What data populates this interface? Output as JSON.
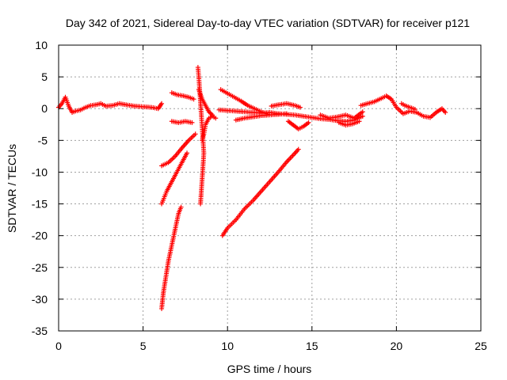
{
  "chart_data": {
    "type": "scatter",
    "title": "Day 342 of 2021, Sidereal Day-to-day VTEC variation (SDTVAR) for receiver p121",
    "xlabel": "GPS time / hours",
    "ylabel": "SDTVAR / TECUs",
    "xlim": [
      0,
      25
    ],
    "ylim": [
      -35,
      10
    ],
    "xticks": [
      0,
      5,
      10,
      15,
      20,
      25
    ],
    "yticks": [
      -35,
      -30,
      -25,
      -20,
      -15,
      -10,
      -5,
      0,
      5,
      10
    ],
    "xtick_labels": [
      "0",
      "5",
      "10",
      "15",
      "20",
      "25"
    ],
    "ytick_labels": [
      "-35",
      "-30",
      "-25",
      "-20",
      "-15",
      "-10",
      "-5",
      "0",
      "5",
      "10"
    ],
    "grid": true,
    "marker": "+",
    "color": "#ff0000",
    "series": [
      {
        "name": "main-trace",
        "points": [
          [
            0.0,
            0.2
          ],
          [
            0.2,
            0.8
          ],
          [
            0.4,
            1.8
          ],
          [
            0.6,
            0.4
          ],
          [
            0.8,
            -0.6
          ],
          [
            1.0,
            -0.4
          ],
          [
            1.3,
            -0.2
          ],
          [
            1.6,
            0.2
          ],
          [
            1.9,
            0.5
          ],
          [
            2.2,
            0.6
          ],
          [
            2.5,
            0.8
          ],
          [
            2.8,
            0.4
          ],
          [
            3.2,
            0.5
          ],
          [
            3.6,
            0.8
          ],
          [
            4.0,
            0.6
          ],
          [
            4.5,
            0.4
          ],
          [
            5.0,
            0.3
          ],
          [
            5.5,
            0.2
          ],
          [
            5.9,
            0.0
          ],
          [
            6.1,
            0.8
          ]
        ]
      },
      {
        "name": "mid-trace-1",
        "points": [
          [
            9.5,
            -0.2
          ],
          [
            10.0,
            -0.3
          ],
          [
            10.5,
            -0.4
          ],
          [
            11.0,
            -0.5
          ],
          [
            11.5,
            -0.6
          ],
          [
            12.0,
            -0.7
          ],
          [
            12.5,
            -0.6
          ],
          [
            13.0,
            -0.8
          ],
          [
            13.5,
            -0.9
          ],
          [
            14.0,
            -1.0
          ],
          [
            14.5,
            -1.2
          ],
          [
            15.0,
            -1.4
          ],
          [
            15.5,
            -1.6
          ],
          [
            16.0,
            -1.7
          ],
          [
            16.5,
            -1.9
          ],
          [
            17.0,
            -2.0
          ],
          [
            17.5,
            -1.8
          ],
          [
            18.0,
            -1.2
          ]
        ]
      },
      {
        "name": "mid-trace-2",
        "points": [
          [
            10.5,
            -1.8
          ],
          [
            11.0,
            -1.5
          ],
          [
            11.5,
            -1.3
          ],
          [
            12.0,
            -1.1
          ],
          [
            12.5,
            -1.0
          ],
          [
            13.0,
            -0.9
          ],
          [
            13.5,
            -0.8
          ]
        ]
      },
      {
        "name": "mid-trace-3",
        "points": [
          [
            12.6,
            0.4
          ],
          [
            13.0,
            0.6
          ],
          [
            13.5,
            0.8
          ],
          [
            14.0,
            0.5
          ],
          [
            14.3,
            0.2
          ]
        ]
      },
      {
        "name": "mid-trace-4",
        "points": [
          [
            13.6,
            -2.0
          ],
          [
            13.9,
            -2.6
          ],
          [
            14.2,
            -3.2
          ],
          [
            14.5,
            -2.8
          ],
          [
            14.8,
            -2.2
          ]
        ]
      },
      {
        "name": "mid-trace-5",
        "points": [
          [
            15.5,
            -1.0
          ],
          [
            16.0,
            -1.5
          ],
          [
            16.5,
            -1.3
          ],
          [
            17.0,
            -1.0
          ],
          [
            17.5,
            -1.5
          ],
          [
            18.0,
            -0.5
          ]
        ]
      },
      {
        "name": "mid-trace-6",
        "points": [
          [
            16.6,
            -2.2
          ],
          [
            17.0,
            -2.6
          ],
          [
            17.4,
            -2.4
          ],
          [
            17.8,
            -2.0
          ]
        ]
      },
      {
        "name": "late-trace",
        "points": [
          [
            17.9,
            0.5
          ],
          [
            18.3,
            0.8
          ],
          [
            18.7,
            1.1
          ],
          [
            19.1,
            1.6
          ],
          [
            19.4,
            2.0
          ],
          [
            19.7,
            1.5
          ],
          [
            20.0,
            0.2
          ],
          [
            20.4,
            -0.8
          ],
          [
            20.8,
            -0.4
          ],
          [
            21.2,
            -0.6
          ],
          [
            21.6,
            -1.2
          ],
          [
            22.0,
            -1.4
          ],
          [
            22.4,
            -0.5
          ],
          [
            22.7,
            0.0
          ],
          [
            22.9,
            -0.6
          ]
        ]
      },
      {
        "name": "late-trace-2",
        "points": [
          [
            20.3,
            0.8
          ],
          [
            20.5,
            0.5
          ],
          [
            20.8,
            0.2
          ],
          [
            21.1,
            -0.1
          ]
        ]
      },
      {
        "name": "upper-arc-1",
        "points": [
          [
            6.7,
            2.5
          ],
          [
            7.0,
            2.2
          ],
          [
            7.4,
            2.0
          ],
          [
            7.7,
            1.8
          ],
          [
            8.0,
            1.5
          ]
        ]
      },
      {
        "name": "upper-arc-2",
        "points": [
          [
            6.7,
            -2.0
          ],
          [
            7.1,
            -2.2
          ],
          [
            7.5,
            -2.0
          ],
          [
            7.9,
            -2.2
          ]
        ]
      },
      {
        "name": "spike",
        "points": [
          [
            8.25,
            6.5
          ],
          [
            8.3,
            5.0
          ],
          [
            8.35,
            3.0
          ],
          [
            8.4,
            1.0
          ],
          [
            8.45,
            -1.0
          ],
          [
            8.5,
            -3.0
          ],
          [
            8.55,
            -5.0
          ],
          [
            8.6,
            -7.0
          ],
          [
            8.55,
            -9.0
          ],
          [
            8.5,
            -11.0
          ],
          [
            8.45,
            -13.0
          ],
          [
            8.4,
            -15.0
          ]
        ]
      },
      {
        "name": "spike-curl-1",
        "points": [
          [
            8.3,
            3.0
          ],
          [
            8.5,
            1.5
          ],
          [
            8.7,
            0.5
          ],
          [
            8.9,
            -0.5
          ],
          [
            9.1,
            -1.0
          ]
        ]
      },
      {
        "name": "spike-curl-2",
        "points": [
          [
            8.5,
            -5.0
          ],
          [
            8.6,
            -4.0
          ],
          [
            8.7,
            -2.5
          ],
          [
            8.9,
            -1.5
          ],
          [
            9.1,
            -1.2
          ],
          [
            9.3,
            -1.5
          ]
        ]
      },
      {
        "name": "descending-arc",
        "points": [
          [
            9.6,
            3.0
          ],
          [
            10.0,
            2.4
          ],
          [
            10.4,
            1.8
          ],
          [
            10.8,
            1.2
          ],
          [
            11.2,
            0.5
          ],
          [
            11.6,
            0.0
          ],
          [
            12.0,
            -0.5
          ],
          [
            12.4,
            -0.9
          ]
        ]
      },
      {
        "name": "low-arc-1",
        "points": [
          [
            6.1,
            -9.0
          ],
          [
            6.5,
            -8.5
          ],
          [
            6.9,
            -7.5
          ],
          [
            7.3,
            -6.2
          ],
          [
            7.7,
            -5.0
          ],
          [
            8.1,
            -4.0
          ]
        ]
      },
      {
        "name": "low-arc-2",
        "points": [
          [
            6.1,
            -15.0
          ],
          [
            6.4,
            -13.0
          ],
          [
            6.7,
            -11.5
          ],
          [
            7.0,
            -10.0
          ],
          [
            7.3,
            -8.5
          ],
          [
            7.6,
            -7.0
          ]
        ]
      },
      {
        "name": "steep-drop",
        "points": [
          [
            6.1,
            -31.5
          ],
          [
            6.2,
            -29.0
          ],
          [
            6.35,
            -26.5
          ],
          [
            6.5,
            -24.0
          ],
          [
            6.7,
            -21.5
          ],
          [
            6.9,
            -19.0
          ],
          [
            7.1,
            -16.5
          ],
          [
            7.25,
            -15.5
          ]
        ]
      },
      {
        "name": "rising-line",
        "points": [
          [
            9.7,
            -20.0
          ],
          [
            10.0,
            -18.8
          ],
          [
            10.5,
            -17.5
          ],
          [
            11.0,
            -15.8
          ],
          [
            11.5,
            -14.5
          ],
          [
            12.0,
            -13.0
          ],
          [
            12.5,
            -11.5
          ],
          [
            13.0,
            -10.0
          ],
          [
            13.5,
            -8.4
          ],
          [
            14.0,
            -7.0
          ],
          [
            14.2,
            -6.4
          ]
        ]
      }
    ]
  }
}
